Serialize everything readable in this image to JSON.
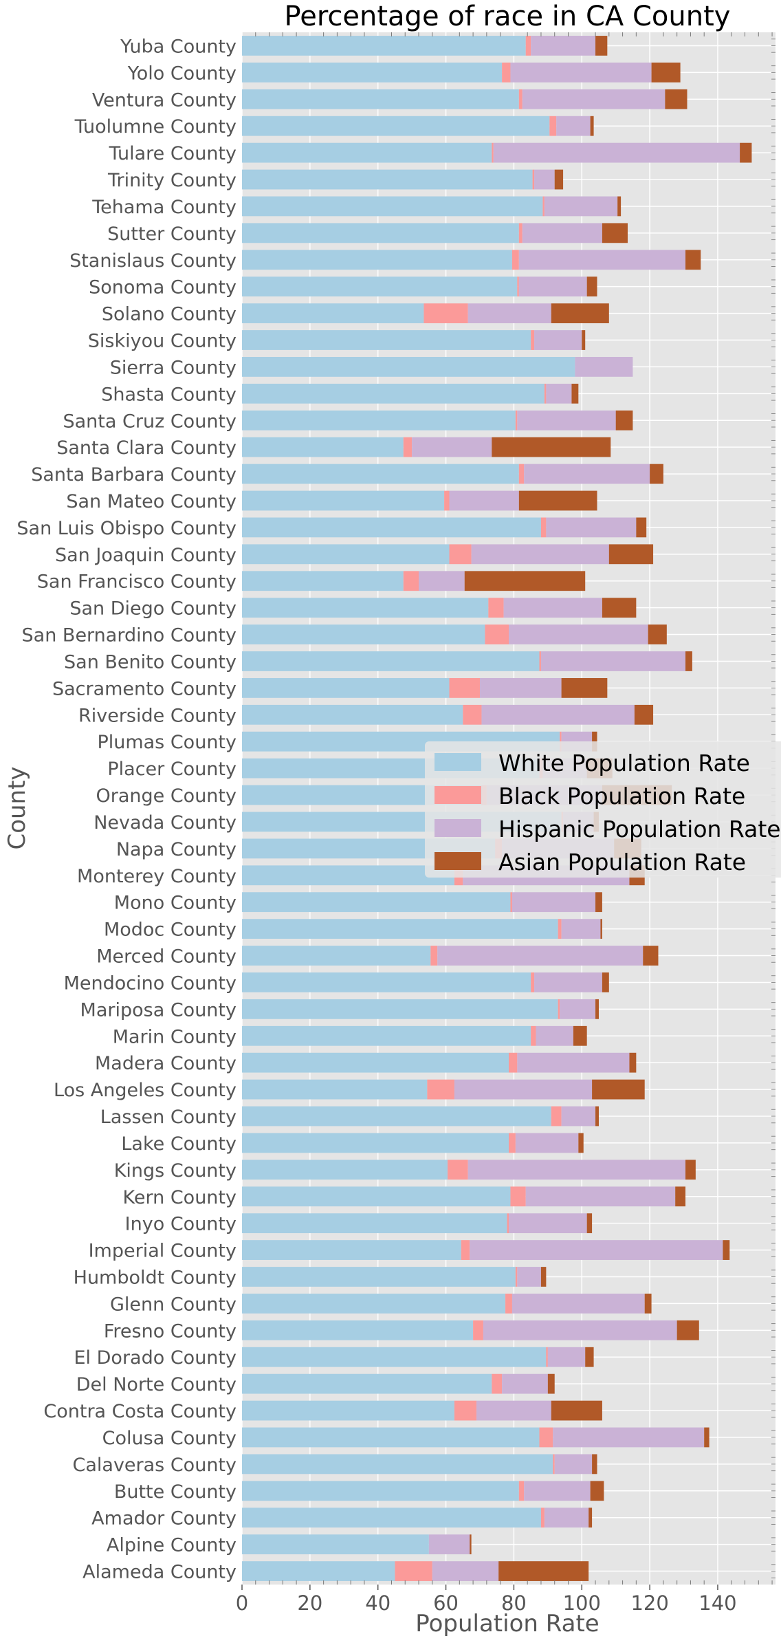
{
  "chart_data": {
    "type": "bar",
    "orientation": "horizontal",
    "stacked": true,
    "title": "Percentage of race in CA County",
    "xlabel": "Population Rate",
    "ylabel": "County",
    "xlim": [
      0,
      157
    ],
    "x_ticks": [
      0,
      20,
      40,
      60,
      80,
      100,
      120,
      140
    ],
    "grid": true,
    "legend_position": "center-right",
    "categories": [
      "Yuba County",
      "Yolo County",
      "Ventura County",
      "Tuolumne County",
      "Tulare County",
      "Trinity County",
      "Tehama County",
      "Sutter County",
      "Stanislaus County",
      "Sonoma County",
      "Solano County",
      "Siskiyou County",
      "Sierra County",
      "Shasta County",
      "Santa Cruz County",
      "Santa Clara County",
      "Santa Barbara County",
      "San Mateo County",
      "San Luis Obispo County",
      "San Joaquin County",
      "San Francisco County",
      "San Diego County",
      "San Bernardino County",
      "San Benito County",
      "Sacramento County",
      "Riverside County",
      "Plumas County",
      "Placer County",
      "Orange County",
      "Nevada County",
      "Napa County",
      "Monterey County",
      "Mono County",
      "Modoc County",
      "Merced County",
      "Mendocino County",
      "Mariposa County",
      "Marin County",
      "Madera County",
      "Los Angeles County",
      "Lassen County",
      "Lake County",
      "Kings County",
      "Kern County",
      "Inyo County",
      "Imperial County",
      "Humboldt County",
      "Glenn County",
      "Fresno County",
      "El Dorado County",
      "Del Norte County",
      "Contra Costa County",
      "Colusa County",
      "Calaveras County",
      "Butte County",
      "Amador County",
      "Alpine County",
      "Alameda County"
    ],
    "series": [
      {
        "name": "White Population Rate",
        "color": "#a6cee3",
        "values": [
          83.5,
          76.5,
          81.5,
          90.5,
          73.5,
          85.5,
          88.5,
          81.5,
          79.5,
          81.0,
          53.5,
          85.0,
          98.0,
          89.0,
          80.5,
          47.5,
          81.5,
          59.5,
          88.0,
          61.0,
          47.5,
          72.5,
          71.5,
          87.5,
          61.0,
          65.0,
          93.5,
          87.5,
          70.5,
          94.0,
          74.5,
          62.5,
          79.0,
          93.0,
          55.5,
          85.0,
          93.0,
          85.0,
          78.5,
          54.5,
          91.0,
          78.5,
          60.5,
          79.0,
          78.0,
          64.5,
          80.5,
          77.5,
          68.0,
          89.5,
          73.5,
          62.5,
          87.5,
          91.5,
          81.5,
          88.0,
          55.0,
          45.0
        ]
      },
      {
        "name": "Black Population Rate",
        "color": "#fb9a99",
        "values": [
          1.5,
          2.5,
          1.0,
          2.0,
          0.5,
          0.5,
          0.5,
          1.0,
          2.0,
          0.5,
          13.0,
          1.0,
          0.0,
          0.5,
          0.5,
          2.5,
          1.5,
          1.5,
          1.5,
          6.5,
          4.5,
          4.5,
          7.0,
          0.5,
          9.0,
          5.5,
          0.5,
          1.0,
          1.5,
          0.5,
          2.0,
          2.5,
          0.5,
          1.0,
          2.0,
          1.0,
          0.5,
          1.5,
          2.5,
          8.0,
          3.0,
          2.0,
          6.0,
          4.5,
          0.5,
          2.5,
          0.5,
          2.0,
          3.0,
          0.5,
          3.0,
          6.5,
          4.0,
          0.5,
          1.5,
          1.0,
          0.0,
          11.0
        ]
      },
      {
        "name": "Hispanic Population Rate",
        "color": "#cab2d6",
        "values": [
          19.0,
          41.5,
          42.0,
          10.0,
          72.5,
          6.0,
          21.5,
          23.5,
          49.0,
          20.0,
          24.5,
          14.0,
          17.0,
          7.5,
          29.0,
          23.5,
          37.0,
          20.5,
          26.5,
          40.5,
          13.5,
          29.0,
          41.0,
          42.5,
          24.0,
          45.0,
          9.0,
          13.0,
          34.0,
          9.0,
          33.0,
          49.0,
          24.5,
          11.5,
          60.5,
          20.0,
          10.5,
          11.0,
          33.0,
          40.5,
          10.0,
          18.5,
          64.0,
          44.0,
          23.0,
          74.5,
          7.0,
          39.0,
          57.0,
          11.0,
          13.5,
          22.0,
          44.5,
          11.0,
          19.5,
          13.0,
          12.0,
          19.5
        ]
      },
      {
        "name": "Asian Population Rate",
        "color": "#b15928",
        "values": [
          3.5,
          8.5,
          6.5,
          1.0,
          3.5,
          2.5,
          1.0,
          7.5,
          4.5,
          3.0,
          17.0,
          1.0,
          0.0,
          2.0,
          5.0,
          35.0,
          4.0,
          23.0,
          3.0,
          13.0,
          35.5,
          10.0,
          5.5,
          2.0,
          13.5,
          5.5,
          1.5,
          7.5,
          20.5,
          1.5,
          8.0,
          4.5,
          2.0,
          0.5,
          4.5,
          2.0,
          1.0,
          4.0,
          2.0,
          15.5,
          1.0,
          1.5,
          3.0,
          3.0,
          1.5,
          2.0,
          1.5,
          2.0,
          6.5,
          2.5,
          2.0,
          15.0,
          1.5,
          1.5,
          4.0,
          1.0,
          0.5,
          26.5
        ]
      }
    ]
  }
}
